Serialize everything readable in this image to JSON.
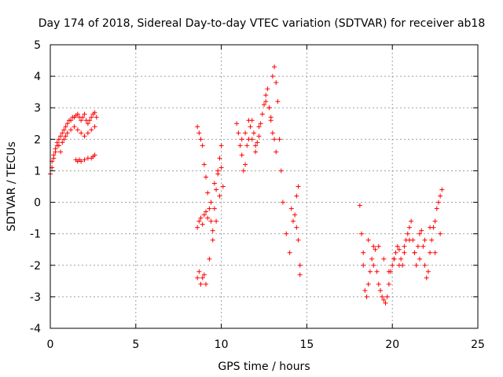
{
  "chart_data": {
    "type": "scatter",
    "title": "Day 174 of 2018, Sidereal Day-to-day VTEC variation (SDTVAR) for receiver ab18",
    "xlabel": "GPS time / hours",
    "ylabel": "SDTVAR / TECUs",
    "xlim": [
      0,
      25
    ],
    "ylim": [
      -4,
      5
    ],
    "xticks": [
      0,
      5,
      10,
      15,
      20,
      25
    ],
    "yticks": [
      -4,
      -3,
      -2,
      -1,
      0,
      1,
      2,
      3,
      4,
      5
    ],
    "grid": true,
    "marker": "+",
    "color": "#ff0000",
    "series": [
      {
        "name": "segment-1",
        "x": [
          0.0,
          0.1,
          0.2,
          0.3,
          0.4,
          0.5,
          0.6,
          0.7,
          0.8,
          0.9,
          1.0,
          1.1,
          1.2,
          1.3,
          1.4,
          1.5,
          1.6,
          1.7,
          1.8,
          1.9,
          2.0,
          2.1,
          2.2,
          2.3,
          2.4,
          2.5,
          2.6,
          2.7,
          0.1,
          0.2,
          0.3,
          0.4,
          0.5,
          0.6,
          0.7,
          0.8,
          0.9,
          1.0,
          1.2,
          1.4,
          1.6,
          1.8,
          2.0,
          2.2,
          2.4,
          2.6,
          1.5,
          1.6,
          1.7,
          1.8,
          2.0,
          2.2,
          2.4,
          2.5,
          2.6
        ],
        "y": [
          0.9,
          1.1,
          1.4,
          1.6,
          1.8,
          2.0,
          2.1,
          2.2,
          2.3,
          2.4,
          2.5,
          2.6,
          2.6,
          2.7,
          2.7,
          2.75,
          2.8,
          2.7,
          2.6,
          2.7,
          2.8,
          2.6,
          2.5,
          2.6,
          2.7,
          2.8,
          2.85,
          2.7,
          1.3,
          1.5,
          1.7,
          1.9,
          1.8,
          1.6,
          1.9,
          2.0,
          2.1,
          2.2,
          2.3,
          2.4,
          2.3,
          2.2,
          2.1,
          2.2,
          2.3,
          2.4,
          1.35,
          1.3,
          1.35,
          1.3,
          1.35,
          1.4,
          1.4,
          1.45,
          1.5
        ]
      },
      {
        "name": "segment-2",
        "x": [
          8.6,
          8.7,
          8.8,
          8.9,
          9.0,
          9.1,
          9.2,
          9.3,
          9.4,
          9.5,
          9.6,
          9.7,
          9.8,
          9.9,
          10.0,
          10.1,
          8.6,
          8.7,
          8.8,
          8.9,
          9.0,
          9.1,
          9.2,
          8.6,
          8.7,
          8.8,
          8.9,
          9.0,
          9.1,
          9.3,
          9.5,
          9.7,
          9.9,
          10.0,
          9.4,
          9.6,
          9.8
        ],
        "y": [
          2.4,
          2.2,
          2.0,
          1.8,
          1.2,
          0.8,
          0.3,
          -0.2,
          -0.6,
          -0.9,
          -0.2,
          0.4,
          0.9,
          1.4,
          1.1,
          0.5,
          -0.8,
          -0.6,
          -0.5,
          -0.7,
          -0.4,
          -0.3,
          -0.5,
          -2.4,
          -2.2,
          -2.6,
          -2.4,
          -2.3,
          -2.6,
          -1.8,
          -1.2,
          -0.6,
          0.2,
          1.8,
          0.0,
          0.6,
          1.0
        ]
      },
      {
        "name": "segment-3",
        "x": [
          10.9,
          11.0,
          11.1,
          11.2,
          11.3,
          11.4,
          11.5,
          11.6,
          11.7,
          11.8,
          11.9,
          12.0,
          12.1,
          12.2,
          12.3,
          12.4,
          12.5,
          12.6,
          12.7,
          12.8,
          12.9,
          13.0,
          13.1,
          13.2,
          11.2,
          11.4,
          11.6,
          11.8,
          12.0,
          12.2,
          12.6,
          12.8,
          12.9,
          13.0,
          13.1,
          13.2,
          13.3,
          13.4,
          13.5,
          13.6,
          13.8,
          14.0,
          14.1,
          14.2,
          14.3,
          14.4,
          14.5,
          14.6,
          14.6,
          14.5,
          14.4
        ],
        "y": [
          2.5,
          2.2,
          1.8,
          1.5,
          1.0,
          1.2,
          1.8,
          2.0,
          2.4,
          2.6,
          2.2,
          1.8,
          1.9,
          2.1,
          2.5,
          2.8,
          3.1,
          3.4,
          3.6,
          3.0,
          2.6,
          2.2,
          2.0,
          1.6,
          2.0,
          2.2,
          2.6,
          2.0,
          1.6,
          2.4,
          3.2,
          3.0,
          2.7,
          4.0,
          4.3,
          3.8,
          3.2,
          2.0,
          1.0,
          0.0,
          -1.0,
          -1.6,
          -0.2,
          -0.6,
          -0.4,
          -0.8,
          -1.2,
          -2.0,
          -2.3,
          0.5,
          0.2
        ]
      },
      {
        "name": "segment-4",
        "x": [
          18.1,
          18.2,
          18.3,
          18.4,
          18.5,
          18.6,
          18.7,
          18.8,
          18.9,
          19.0,
          19.1,
          19.2,
          19.3,
          19.4,
          19.5,
          19.6,
          19.7,
          19.8,
          19.9,
          20.0,
          20.1,
          20.2,
          20.3,
          20.4,
          20.5,
          20.6,
          20.7,
          20.8,
          20.9,
          21.0,
          21.1,
          21.2,
          21.3,
          21.4,
          21.5,
          21.6,
          21.7,
          21.8,
          21.9,
          22.0,
          22.1,
          22.2,
          22.3,
          22.4,
          22.5,
          22.6,
          22.7,
          22.8,
          22.9,
          18.3,
          18.6,
          18.9,
          19.2,
          19.5,
          19.8,
          20.1,
          20.4,
          20.7,
          21.0,
          21.3,
          21.6,
          21.9,
          22.2,
          22.5,
          22.8
        ],
        "y": [
          -0.1,
          -1.0,
          -2.0,
          -2.8,
          -3.0,
          -2.6,
          -2.2,
          -1.8,
          -1.4,
          -1.5,
          -2.2,
          -2.6,
          -2.8,
          -3.0,
          -3.1,
          -3.2,
          -3.0,
          -2.6,
          -2.2,
          -2.0,
          -1.8,
          -1.6,
          -1.4,
          -1.5,
          -1.8,
          -2.0,
          -1.6,
          -1.2,
          -1.0,
          -0.8,
          -0.6,
          -1.2,
          -1.6,
          -2.0,
          -1.4,
          -1.0,
          -0.9,
          -1.4,
          -2.0,
          -2.4,
          -2.2,
          -1.6,
          -1.2,
          -0.8,
          -0.6,
          -0.2,
          0.0,
          0.2,
          0.4,
          -1.6,
          -1.2,
          -2.0,
          -1.4,
          -1.8,
          -2.2,
          -1.8,
          -2.0,
          -1.4,
          -1.2,
          -1.6,
          -1.8,
          -1.2,
          -0.8,
          -1.6,
          -1.0
        ]
      }
    ]
  }
}
